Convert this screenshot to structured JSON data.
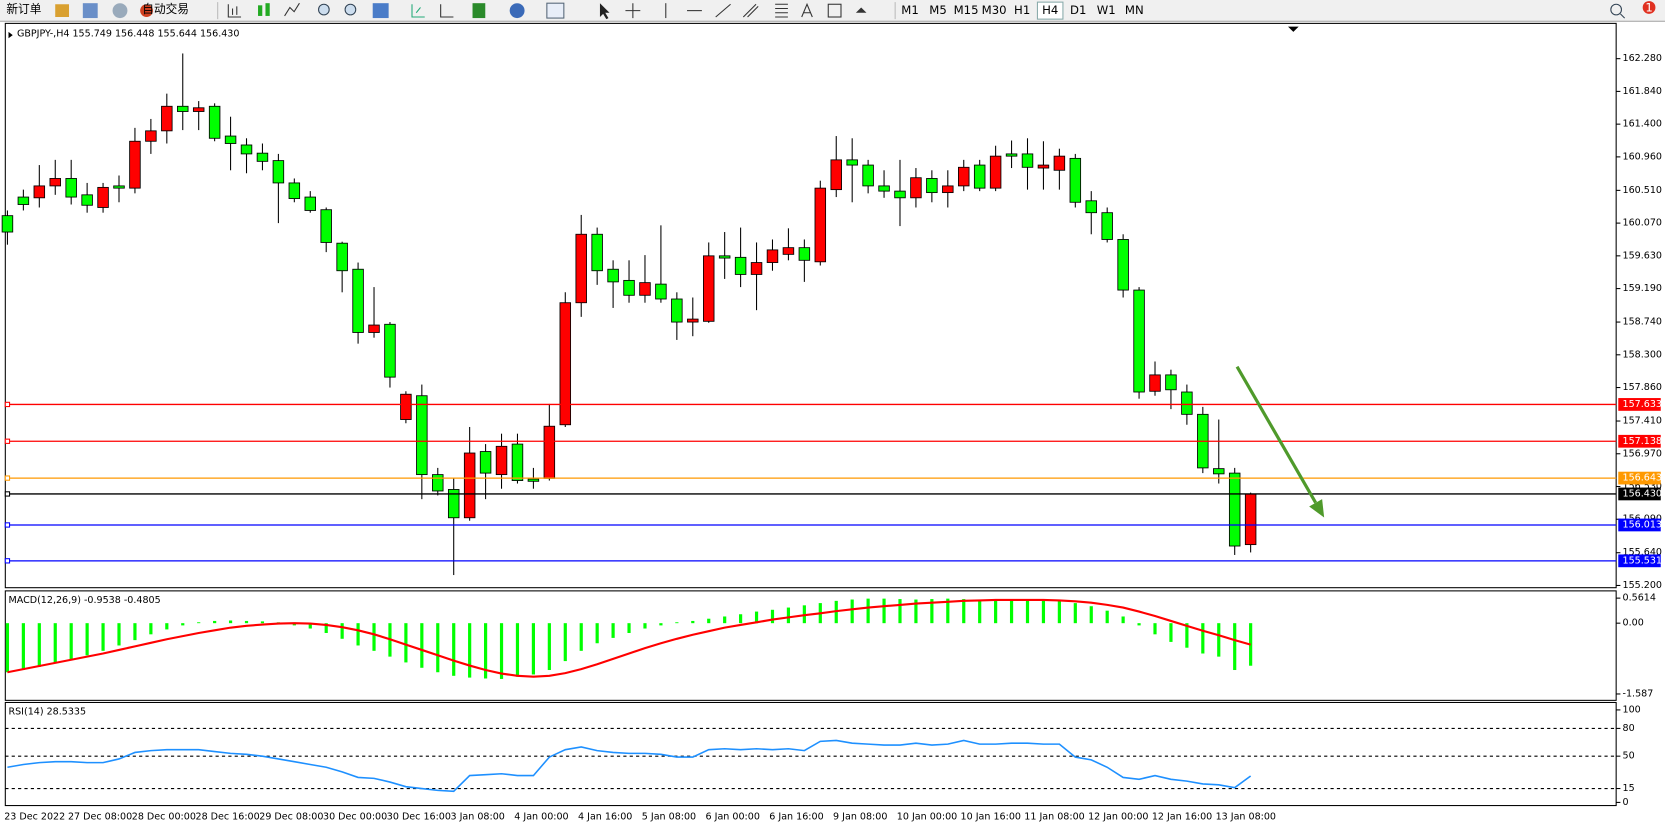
{
  "toolbar": {
    "buttons": [
      "新订单",
      "自动交易"
    ],
    "timeframes": [
      "M1",
      "M5",
      "M15",
      "M30",
      "H1",
      "H4",
      "D1",
      "W1",
      "MN"
    ],
    "badge": "1"
  },
  "chart_data": [
    {
      "type": "candlestick",
      "title": "GBPJPY-,H4  155.749 156.448 155.644 156.430",
      "up_color": "#ff0000",
      "down_color": "#00ff00",
      "categories": [
        "23 Dec 2022",
        null,
        null,
        null,
        "27 Dec 08:00",
        null,
        null,
        null,
        "28 Dec 00:00",
        null,
        null,
        null,
        "28 Dec 16:00",
        null,
        null,
        null,
        "29 Dec 08:00",
        null,
        null,
        null,
        "30 Dec 00:00",
        null,
        null,
        null,
        "30 Dec 16:00",
        null,
        null,
        null,
        "3 Jan 08:00",
        null,
        null,
        null,
        "4 Jan 00:00",
        null,
        null,
        null,
        "4 Jan 16:00",
        null,
        null,
        null,
        "5 Jan 08:00",
        null,
        null,
        null,
        "6 Jan 00:00",
        null,
        null,
        null,
        "6 Jan 16:00",
        null,
        null,
        null,
        "9 Jan 08:00",
        null,
        null,
        null,
        "10 Jan 00:00",
        null,
        null,
        null,
        "10 Jan 16:00",
        null,
        null,
        null,
        "11 Jan 08:00",
        null,
        null,
        null,
        "12 Jan 00:00",
        null,
        null,
        null,
        "12 Jan 16:00",
        null,
        null,
        null,
        "13 Jan 08:00",
        null,
        null
      ],
      "open": [
        160.17,
        160.42,
        160.41,
        160.57,
        160.67,
        160.45,
        160.28,
        160.57,
        160.54,
        161.17,
        161.31,
        161.64,
        161.57,
        161.64,
        161.24,
        161.12,
        161.01,
        160.91,
        160.61,
        160.42,
        160.25,
        159.8,
        159.45,
        158.6,
        158.71,
        157.43,
        157.75,
        156.69,
        156.49,
        156.11,
        157.0,
        156.69,
        157.1,
        156.63,
        156.64,
        157.36,
        159.0,
        159.92,
        159.45,
        159.3,
        159.1,
        159.25,
        159.05,
        158.74,
        158.75,
        159.63,
        159.61,
        159.38,
        159.54,
        159.65,
        159.74,
        159.55,
        160.52,
        160.92,
        160.85,
        160.57,
        160.5,
        160.41,
        160.67,
        160.48,
        160.57,
        160.85,
        160.54,
        161.0,
        161.0,
        160.81,
        160.78,
        160.94,
        160.37,
        160.21,
        159.85,
        159.17,
        157.81,
        158.03,
        157.8,
        157.5,
        156.77,
        156.71,
        155.749
      ],
      "high": [
        160.24,
        160.52,
        160.85,
        160.92,
        160.92,
        160.61,
        160.61,
        160.71,
        161.35,
        161.47,
        161.81,
        162.35,
        161.71,
        161.68,
        161.5,
        161.21,
        161.14,
        161.0,
        160.67,
        160.5,
        160.28,
        159.82,
        159.54,
        159.21,
        158.74,
        157.81,
        157.9,
        156.78,
        156.64,
        157.33,
        157.1,
        157.24,
        157.24,
        156.78,
        157.64,
        159.14,
        160.18,
        160.01,
        159.57,
        159.57,
        159.64,
        160.04,
        159.14,
        159.07,
        159.81,
        159.95,
        160.01,
        159.81,
        159.85,
        160.0,
        159.85,
        160.64,
        161.24,
        161.21,
        160.92,
        160.78,
        160.92,
        160.81,
        160.78,
        160.78,
        160.92,
        160.92,
        161.11,
        161.18,
        161.21,
        161.17,
        161.07,
        161.0,
        160.5,
        160.28,
        159.92,
        159.21,
        158.21,
        158.1,
        157.9,
        157.6,
        157.43,
        156.78,
        156.448
      ],
      "low": [
        159.78,
        160.24,
        160.28,
        160.45,
        160.32,
        160.21,
        160.21,
        160.35,
        160.47,
        161.0,
        161.14,
        161.32,
        161.32,
        161.17,
        160.78,
        160.74,
        160.78,
        160.07,
        160.35,
        160.21,
        159.68,
        159.14,
        158.45,
        158.53,
        157.86,
        157.38,
        156.36,
        156.41,
        155.34,
        156.07,
        156.36,
        156.5,
        156.57,
        156.5,
        156.61,
        157.33,
        158.81,
        159.24,
        158.93,
        159.0,
        159.0,
        159.0,
        158.5,
        158.55,
        158.73,
        159.32,
        159.21,
        158.9,
        159.43,
        159.57,
        159.28,
        159.5,
        160.42,
        160.35,
        160.47,
        160.41,
        160.03,
        160.28,
        160.35,
        160.28,
        160.5,
        160.5,
        160.5,
        160.81,
        160.52,
        160.52,
        160.52,
        160.28,
        159.92,
        159.81,
        159.07,
        157.71,
        157.75,
        157.57,
        157.36,
        156.71,
        156.57,
        155.61,
        155.644
      ],
      "close": [
        159.95,
        160.32,
        160.57,
        160.67,
        160.42,
        160.31,
        160.55,
        160.54,
        161.17,
        161.31,
        161.64,
        161.57,
        161.62,
        161.21,
        161.14,
        161.0,
        160.9,
        160.61,
        160.4,
        160.24,
        159.81,
        159.43,
        158.6,
        158.7,
        158.0,
        157.77,
        156.69,
        156.47,
        156.11,
        156.98,
        156.71,
        157.07,
        156.61,
        156.6,
        157.34,
        159.0,
        159.92,
        159.43,
        159.28,
        159.1,
        159.27,
        159.05,
        158.74,
        158.78,
        159.63,
        159.6,
        159.38,
        159.54,
        159.71,
        159.74,
        159.57,
        160.54,
        160.92,
        160.85,
        160.57,
        160.5,
        160.41,
        160.68,
        160.48,
        160.57,
        160.82,
        160.54,
        160.97,
        160.97,
        160.82,
        160.85,
        160.97,
        160.35,
        160.21,
        159.85,
        159.17,
        157.8,
        158.03,
        157.83,
        157.5,
        156.78,
        156.7,
        155.73,
        156.43
      ],
      "ylim": [
        155.17,
        162.74
      ],
      "yticks": [
        {
          "value": 162.28,
          "label": "162.280"
        },
        {
          "value": 161.84,
          "label": "161.840"
        },
        {
          "value": 161.4,
          "label": "161.400"
        },
        {
          "value": 160.96,
          "label": "160.960"
        },
        {
          "value": 160.51,
          "label": "160.510"
        },
        {
          "value": 160.07,
          "label": "160.070"
        },
        {
          "value": 159.63,
          "label": "159.630"
        },
        {
          "value": 159.19,
          "label": "159.190"
        },
        {
          "value": 158.74,
          "label": "158.740"
        },
        {
          "value": 158.3,
          "label": "158.300"
        },
        {
          "value": 157.86,
          "label": "157.860"
        },
        {
          "value": 157.41,
          "label": "157.410"
        },
        {
          "value": 156.97,
          "label": "156.970"
        },
        {
          "value": 156.53,
          "label": "156.530"
        },
        {
          "value": 156.09,
          "label": "156.090"
        },
        {
          "value": 155.64,
          "label": "155.640"
        },
        {
          "value": 155.2,
          "label": "155.200"
        }
      ],
      "levels": [
        {
          "value": 157.633,
          "color": "#ff0000"
        },
        {
          "value": 157.138,
          "color": "#ff0000"
        },
        {
          "value": 156.643,
          "color": "#ff9900"
        },
        {
          "value": 156.43,
          "label": "156.430",
          "color": "#000000"
        },
        {
          "value": 156.013,
          "color": "#0000ff"
        },
        {
          "value": 155.531,
          "color": "#0000ff"
        }
      ]
    },
    {
      "type": "macd",
      "title": "MACD(12,26,9) -0.9538 -0.4805",
      "histogram": {
        "color": "#00ff00",
        "values": [
          -1.1,
          -1.05,
          -0.98,
          -0.9,
          -0.82,
          -0.72,
          -0.62,
          -0.5,
          -0.38,
          -0.25,
          -0.14,
          -0.05,
          0.02,
          0.05,
          0.06,
          0.05,
          0.04,
          0.02,
          -0.05,
          -0.12,
          -0.22,
          -0.35,
          -0.5,
          -0.62,
          -0.75,
          -0.88,
          -1.0,
          -1.1,
          -1.18,
          -1.22,
          -1.24,
          -1.25,
          -1.2,
          -1.15,
          -1.05,
          -0.85,
          -0.62,
          -0.45,
          -0.33,
          -0.22,
          -0.12,
          -0.05,
          0.02,
          0.05,
          0.1,
          0.15,
          0.2,
          0.26,
          0.3,
          0.35,
          0.4,
          0.45,
          0.5,
          0.53,
          0.55,
          0.55,
          0.54,
          0.53,
          0.54,
          0.55,
          0.54,
          0.53,
          0.54,
          0.54,
          0.53,
          0.52,
          0.5,
          0.45,
          0.38,
          0.28,
          0.15,
          -0.05,
          -0.25,
          -0.42,
          -0.55,
          -0.68,
          -0.75,
          -1.05,
          -0.9538
        ]
      },
      "signal": {
        "color": "#ff0000",
        "values": [
          -1.1,
          -1.03,
          -0.96,
          -0.89,
          -0.82,
          -0.75,
          -0.68,
          -0.6,
          -0.52,
          -0.44,
          -0.36,
          -0.29,
          -0.22,
          -0.16,
          -0.1,
          -0.06,
          -0.03,
          -0.01,
          0.0,
          -0.01,
          -0.04,
          -0.09,
          -0.16,
          -0.25,
          -0.36,
          -0.48,
          -0.6,
          -0.72,
          -0.84,
          -0.95,
          -1.05,
          -1.13,
          -1.18,
          -1.2,
          -1.18,
          -1.12,
          -1.03,
          -0.92,
          -0.8,
          -0.68,
          -0.56,
          -0.45,
          -0.35,
          -0.26,
          -0.18,
          -0.1,
          -0.04,
          0.02,
          0.08,
          0.13,
          0.18,
          0.22,
          0.27,
          0.31,
          0.35,
          0.38,
          0.41,
          0.44,
          0.46,
          0.48,
          0.5,
          0.51,
          0.52,
          0.52,
          0.52,
          0.52,
          0.51,
          0.49,
          0.46,
          0.41,
          0.35,
          0.26,
          0.16,
          0.05,
          -0.06,
          -0.17,
          -0.27,
          -0.38,
          -0.4805
        ]
      },
      "ylim": [
        -1.73,
        0.7
      ],
      "yticks": [
        0.5614,
        {
          "value": 0,
          "label": "0.00"
        },
        -1.587
      ]
    },
    {
      "type": "line",
      "title": "RSI(14) 28.5335",
      "color": "#1e90ff",
      "values": [
        38,
        41,
        43,
        44,
        44,
        43,
        43,
        47,
        54,
        56,
        57,
        57,
        57,
        55,
        53,
        52,
        50,
        47,
        44,
        41,
        38,
        33,
        27,
        26,
        22,
        17,
        15,
        13,
        12,
        29,
        30,
        31,
        29,
        29,
        49,
        57,
        60,
        56,
        54,
        53,
        53,
        52,
        49,
        49,
        57,
        58,
        57,
        58,
        57,
        58,
        56,
        66,
        67,
        64,
        63,
        62,
        62,
        64,
        62,
        63,
        67,
        63,
        63,
        64,
        64,
        63,
        63,
        49,
        46,
        38,
        27,
        25,
        29,
        25,
        23,
        20,
        19,
        16,
        28.5335
      ],
      "ylim": [
        -3.4,
        106.9
      ],
      "yticks": [
        100,
        80,
        50,
        15,
        0
      ],
      "levels": [
        80,
        50,
        15
      ]
    }
  ]
}
